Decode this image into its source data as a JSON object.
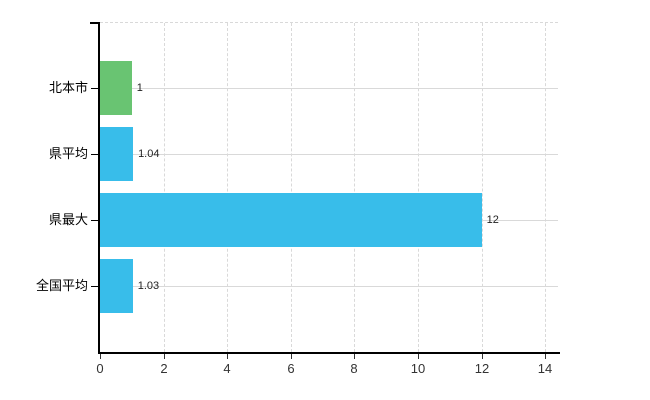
{
  "chart_data": {
    "type": "bar",
    "orientation": "horizontal",
    "title": "",
    "xlabel": "",
    "ylabel": "",
    "legend": "none",
    "categories": [
      "北本市",
      "県平均",
      "県最大",
      "全国平均"
    ],
    "values": [
      1,
      1.04,
      12,
      1.03
    ],
    "value_labels": [
      "1",
      "1.04",
      "12",
      "1.03"
    ],
    "series_colors": [
      "#69c472",
      "#38bdea",
      "#38bdea",
      "#38bdea"
    ],
    "xlim": [
      0,
      14.4
    ],
    "xticks": [
      0,
      2,
      4,
      6,
      8,
      10,
      12,
      14
    ],
    "grid": {
      "vertical_style": "dashed",
      "horizontal_style": "solid",
      "color": "#d9d9d9"
    },
    "axis_color": "#000000",
    "tick_color": "#333333",
    "background": "#ffffff"
  }
}
